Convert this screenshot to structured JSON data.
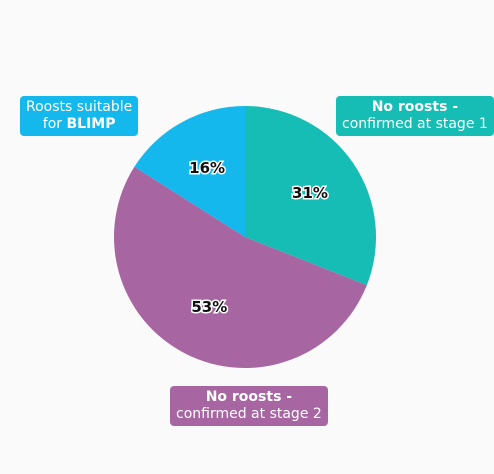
{
  "chart_data": {
    "type": "pie",
    "slices": [
      {
        "label": "No roosts - confirmed at stage 1",
        "value": 31,
        "display": "31%",
        "color": "#15bdb4"
      },
      {
        "label": "No roosts - confirmed at stage 2",
        "value": 53,
        "display": "53%",
        "color": "#a765a2"
      },
      {
        "label": "Roosts suitable for BLIMP",
        "value": 16,
        "display": "16%",
        "color": "#14b8ec"
      }
    ],
    "start_angle": "12 o'clock",
    "direction": "clockwise"
  },
  "callouts": {
    "stage1": {
      "line1": "No roosts -",
      "line2": "confirmed at stage 1",
      "color": "#15bdb4"
    },
    "stage2": {
      "line1": "No roosts -",
      "line2": "confirmed at stage 2",
      "color": "#a765a2"
    },
    "blimp": {
      "line1": "Roosts suitable",
      "line2_prefix": "for ",
      "line2_bold": "BLIMP",
      "color": "#14b8ec"
    }
  }
}
